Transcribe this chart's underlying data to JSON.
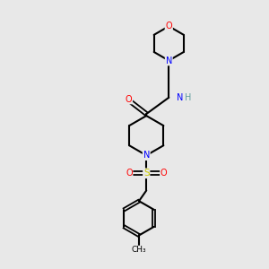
{
  "background_color": "#e8e8e8",
  "bond_color": "#000000",
  "atom_colors": {
    "O": "#ff0000",
    "N": "#0000ff",
    "S": "#cccc00",
    "H": "#5f9ea0",
    "C": "#000000"
  },
  "figsize": [
    3.0,
    3.0
  ],
  "dpi": 100
}
